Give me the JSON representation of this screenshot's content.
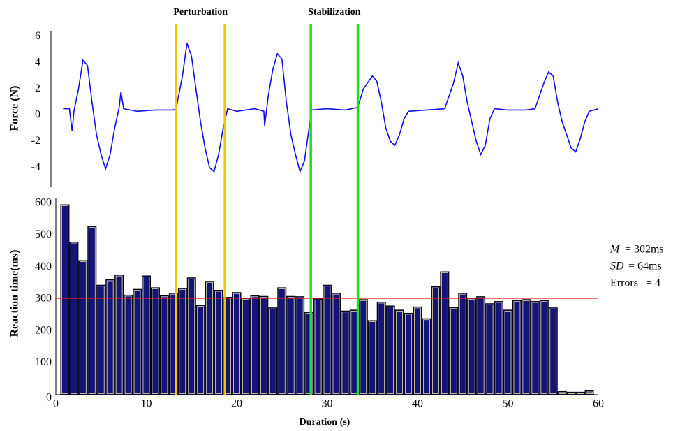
{
  "chart_data": [
    {
      "type": "line",
      "y_label": "Force (N)",
      "color": "#1010ee",
      "x": [
        0.8,
        1.5,
        1.8,
        2.0,
        2.5,
        3.0,
        3.5,
        4.0,
        4.5,
        5.0,
        5.5,
        6.0,
        6.5,
        7.0,
        7.2,
        7.5,
        9,
        11,
        13,
        13.3,
        14,
        14.5,
        15,
        15.5,
        16,
        16.5,
        17,
        17.5,
        18,
        18.5,
        19,
        20,
        22,
        23,
        23.1,
        23.5,
        24,
        24.5,
        25,
        25.5,
        26,
        26.5,
        27,
        27.5,
        28,
        28.3,
        30,
        32,
        33.4,
        34,
        35,
        35.5,
        36,
        36.5,
        37,
        37.5,
        38,
        38.5,
        39,
        41,
        43,
        44,
        44.5,
        45,
        45.5,
        46,
        46.5,
        47,
        47.5,
        48,
        48.5,
        50,
        52,
        53,
        53.5,
        54,
        54.5,
        55,
        55.5,
        56,
        56.5,
        57,
        57.5,
        58,
        58.5,
        59,
        60
      ],
      "values": [
        0.5,
        0.5,
        -1.2,
        0.3,
        2,
        4.2,
        3.8,
        1,
        -1.5,
        -3,
        -4.1,
        -3,
        -1,
        0.6,
        1.8,
        0.5,
        0.3,
        0.4,
        0.4,
        0.5,
        3,
        5.5,
        4.5,
        2,
        -0.5,
        -2.5,
        -4,
        -4.3,
        -3,
        -1,
        0.5,
        0.3,
        0.5,
        0.3,
        -0.8,
        1.5,
        3.5,
        4.7,
        4.3,
        1,
        -1.5,
        -3,
        -4.3,
        -3.5,
        -1,
        0.4,
        0.5,
        0.4,
        0.6,
        2,
        3,
        2.6,
        1,
        -1,
        -2,
        -2.3,
        -1.5,
        -0.3,
        0.3,
        0.4,
        0.5,
        2.5,
        4,
        3,
        1,
        -0.5,
        -2,
        -3,
        -2.3,
        -0.3,
        0.5,
        0.4,
        0.4,
        0.5,
        1.5,
        2.5,
        3.3,
        3,
        1,
        -0.5,
        -1.5,
        -2.5,
        -2.8,
        -1.8,
        -0.5,
        0.3,
        0.5
      ],
      "xlim": [
        0,
        60
      ],
      "ylim": [
        -5.5,
        6.4
      ],
      "yticks": [
        -4,
        -2,
        0,
        2,
        4,
        6
      ]
    },
    {
      "type": "bar",
      "y_label": "Reaction time(ms)",
      "x_label": "Duration (s)",
      "color": "#14147a",
      "x": [
        1,
        2,
        3,
        4,
        5,
        6,
        7,
        8,
        9,
        10,
        11,
        12,
        13,
        14,
        15,
        16,
        17,
        18,
        19,
        20,
        21,
        22,
        23,
        24,
        25,
        26,
        27,
        28,
        29,
        30,
        31,
        32,
        33,
        34,
        35,
        36,
        37,
        38,
        39,
        40,
        41,
        42,
        43,
        44,
        45,
        46,
        47,
        48,
        49,
        50,
        51,
        52,
        53,
        54,
        55,
        56,
        57,
        58,
        59
      ],
      "values": [
        595,
        478,
        420,
        527,
        343,
        360,
        375,
        312,
        330,
        372,
        335,
        310,
        318,
        333,
        366,
        280,
        355,
        327,
        305,
        320,
        302,
        310,
        308,
        272,
        335,
        308,
        307,
        258,
        300,
        343,
        318,
        262,
        265,
        298,
        232,
        290,
        278,
        265,
        255,
        275,
        238,
        338,
        385,
        273,
        318,
        302,
        307,
        285,
        292,
        265,
        295,
        298,
        292,
        295,
        272,
        10,
        8,
        8,
        12
      ],
      "xlim": [
        0,
        60
      ],
      "xticks": [
        0,
        10,
        20,
        30,
        40,
        50,
        60
      ],
      "ylim": [
        0,
        617
      ],
      "yticks": [
        0,
        100,
        200,
        300,
        400,
        500,
        600
      ],
      "mean_line": {
        "value": 302,
        "color": "#e02020"
      },
      "annotations": [
        {
          "term": "M",
          "text": "= 302ms"
        },
        {
          "term": "SD",
          "text": "= 64ms"
        },
        {
          "term": "Errors",
          "text": "= 4"
        }
      ]
    }
  ],
  "events": [
    {
      "label": "Perturbation",
      "color": "#ffc000",
      "x": [
        13.3,
        18.7
      ]
    },
    {
      "label": "Stabilization",
      "color": "#22dd22",
      "x": [
        28.2,
        33.4
      ]
    }
  ]
}
